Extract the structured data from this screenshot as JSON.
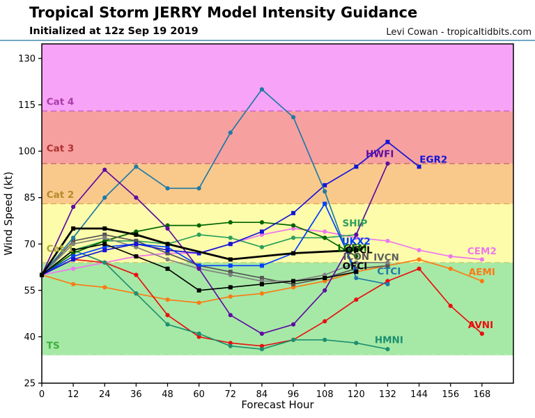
{
  "header": {
    "title": "Tropical Storm JERRY Model Intensity Guidance",
    "subtitle": "Initialized at 12z Sep 19 2019",
    "credit": "Levi Cowan - tropicaltidbits.com",
    "rule_color": "#4189ae"
  },
  "chart_data": {
    "type": "line",
    "title": "Tropical Storm JERRY Model Intensity Guidance",
    "xlabel": "Forecast Hour",
    "ylabel": "Wind Speed (kt)",
    "xlim": [
      0,
      180
    ],
    "ylim": [
      25,
      134.7
    ],
    "x_ticks": [
      0,
      12,
      24,
      36,
      48,
      60,
      72,
      84,
      96,
      108,
      120,
      132,
      144,
      156,
      168
    ],
    "y_ticks": [
      25,
      40,
      55,
      70,
      85,
      100,
      115,
      130
    ],
    "grid": false,
    "bands": [
      {
        "label": "below-TS",
        "from": 25,
        "to": 34,
        "color": "#ffffff"
      },
      {
        "label": "TS",
        "from": 34,
        "to": 64,
        "color": "#a6e9a6"
      },
      {
        "label": "Cat 1",
        "from": 64,
        "to": 83,
        "color": "#fcfcab"
      },
      {
        "label": "Cat 2",
        "from": 83,
        "to": 96,
        "color": "#f9c98c"
      },
      {
        "label": "Cat 3",
        "from": 96,
        "to": 113,
        "color": "#f6a0a0"
      },
      {
        "label": "Cat 4",
        "from": 113,
        "to": 134.7,
        "color": "#f7a3f7"
      }
    ],
    "boundaries": [
      {
        "value": 34,
        "color": "#e2efe2"
      },
      {
        "value": 64,
        "color": "#c6ca6a"
      },
      {
        "value": 83,
        "color": "#dca84e"
      },
      {
        "value": 96,
        "color": "#c96a6a"
      },
      {
        "value": 113,
        "color": "#c862c8"
      }
    ],
    "category_labels": [
      {
        "text": "TS",
        "x": 1.8,
        "y": 37.2,
        "color": "#3cae3c"
      },
      {
        "text": "Cat 1",
        "x": 1.8,
        "y": 68.5,
        "color": "#a8a832"
      },
      {
        "text": "Cat 2",
        "x": 1.8,
        "y": 86.0,
        "color": "#b5892b"
      },
      {
        "text": "Cat 3",
        "x": 1.8,
        "y": 101.0,
        "color": "#b03232"
      },
      {
        "text": "Cat 4",
        "x": 1.8,
        "y": 116.0,
        "color": "#a83ca8"
      }
    ],
    "series": [
      {
        "name": "CEM2",
        "color": "#ee77ee",
        "width": 1.7,
        "marker": "circle",
        "hours": [
          0,
          12,
          24,
          36,
          48,
          60,
          72,
          84,
          96,
          108,
          120,
          132,
          144,
          156,
          168
        ],
        "values": [
          60,
          62,
          64,
          66,
          67,
          67,
          70,
          73,
          75,
          74,
          72,
          71,
          68,
          66,
          65
        ]
      },
      {
        "name": "AEMI",
        "color": "#fb7a12",
        "width": 1.7,
        "marker": "circle",
        "hours": [
          0,
          12,
          24,
          36,
          48,
          60,
          72,
          84,
          96,
          108,
          120,
          132,
          144,
          156,
          168
        ],
        "values": [
          60,
          57,
          56,
          54,
          52,
          51,
          53,
          54,
          56,
          58,
          61,
          63,
          65,
          62,
          58
        ]
      },
      {
        "name": "AVNI",
        "color": "#e81010",
        "width": 1.7,
        "marker": "circle",
        "hours": [
          0,
          12,
          24,
          36,
          48,
          60,
          72,
          84,
          96,
          108,
          120,
          132,
          144,
          156,
          168
        ],
        "values": [
          60,
          65,
          64,
          60,
          47,
          40,
          38,
          37,
          39,
          45,
          52,
          58,
          62,
          50,
          41
        ]
      },
      {
        "name": "HMNI",
        "color": "#1d8f70",
        "width": 1.7,
        "marker": "circle",
        "hours": [
          0,
          12,
          24,
          36,
          48,
          60,
          72,
          84,
          96,
          108,
          120,
          132
        ],
        "values": [
          60,
          68,
          64,
          54,
          44,
          41,
          37,
          36,
          39,
          39,
          38,
          36
        ]
      },
      {
        "name": "SHIP",
        "color": "#2ca05a",
        "width": 1.7,
        "marker": "circle",
        "hours": [
          0,
          12,
          24,
          36,
          48,
          60,
          72,
          84,
          96,
          108,
          120
        ],
        "values": [
          60,
          68,
          71,
          71,
          70,
          73,
          72,
          69,
          72,
          72,
          73
        ]
      },
      {
        "name": "LGEM",
        "color": "#006400",
        "width": 1.7,
        "marker": "circle",
        "hours": [
          0,
          12,
          24,
          36,
          48,
          60,
          72,
          84,
          96,
          108,
          120
        ],
        "values": [
          60,
          67,
          71,
          74,
          76,
          76,
          77,
          77,
          76,
          72,
          66
        ]
      },
      {
        "name": "ICON",
        "color": "#555555",
        "width": 1.7,
        "marker": "square",
        "hours": [
          0,
          12,
          24,
          36,
          48,
          60,
          72,
          84,
          96,
          108,
          120,
          132
        ],
        "values": [
          60,
          71,
          73,
          71,
          67,
          63,
          61,
          59,
          57,
          59,
          62,
          63
        ]
      },
      {
        "name": "IVCN",
        "color": "#808080",
        "width": 1.7,
        "marker": "circle",
        "hours": [
          0,
          12,
          24,
          36,
          48,
          60,
          72,
          84,
          96,
          108,
          120,
          132
        ],
        "values": [
          60,
          70,
          72,
          69,
          65,
          62,
          60,
          58,
          58,
          60,
          64,
          64
        ]
      },
      {
        "name": "UKX2",
        "color": "#0040ff",
        "width": 1.7,
        "marker": "square",
        "hours": [
          0,
          12,
          24,
          36,
          48,
          60,
          72,
          84,
          96,
          108,
          120
        ],
        "values": [
          60,
          66,
          69,
          70,
          69,
          63,
          63,
          63,
          67,
          83,
          61
        ]
      },
      {
        "name": "EGR2",
        "color": "#1515d6",
        "width": 1.7,
        "marker": "square",
        "hours": [
          0,
          12,
          24,
          36,
          48,
          60,
          72,
          84,
          96,
          108,
          120,
          132,
          144
        ],
        "values": [
          60,
          65,
          68,
          70,
          68,
          67,
          70,
          74,
          80,
          89,
          95,
          103,
          95
        ]
      },
      {
        "name": "CTCI",
        "color": "#1f7aa6",
        "width": 1.7,
        "marker": "circle",
        "hours": [
          0,
          12,
          24,
          36,
          48,
          60,
          72,
          84,
          96,
          108,
          120,
          132
        ],
        "values": [
          60,
          72,
          85,
          95,
          88,
          88,
          106,
          120,
          111,
          87,
          59,
          57
        ]
      },
      {
        "name": "HWFI",
        "color": "#5e0da0",
        "width": 1.7,
        "marker": "circle",
        "hours": [
          0,
          12,
          24,
          36,
          48,
          60,
          72,
          84,
          96,
          108,
          120,
          132
        ],
        "values": [
          60,
          82,
          94,
          85,
          75,
          62,
          47,
          41,
          44,
          55,
          73,
          96
        ]
      },
      {
        "name": "OFCI",
        "color": "#000000",
        "width": 1.6,
        "marker": "square",
        "hours": [
          0,
          12,
          24,
          36,
          48,
          60,
          72,
          84,
          96,
          108,
          120
        ],
        "values": [
          60,
          68,
          70,
          66,
          62,
          55,
          56,
          57,
          58,
          59,
          61
        ]
      },
      {
        "name": "OFCL",
        "color": "#000000",
        "width": 2.8,
        "marker": "square",
        "hours": [
          0,
          12,
          24,
          36,
          48,
          72,
          96,
          120
        ],
        "values": [
          60,
          75,
          75,
          73,
          70,
          65,
          67,
          68
        ]
      }
    ],
    "series_labels": [
      {
        "text": "HWFI",
        "x": 129,
        "y": 99.2,
        "color": "#5e0da0"
      },
      {
        "text": "EGR2",
        "x": 149.5,
        "y": 97.4,
        "color": "#1515d6"
      },
      {
        "text": "SHIP",
        "x": 119.5,
        "y": 76.8,
        "color": "#2ca05a"
      },
      {
        "text": "UKX2",
        "x": 120,
        "y": 70.9,
        "color": "#0040ff"
      },
      {
        "text": "LGEM",
        "x": 118.5,
        "y": 68.7,
        "color": "#006400"
      },
      {
        "text": "OFCL",
        "x": 121,
        "y": 68.1,
        "color": "#000000"
      },
      {
        "text": "ICON",
        "x": 120,
        "y": 65.9,
        "color": "#555555"
      },
      {
        "text": "OFCI",
        "x": 119.5,
        "y": 62.9,
        "color": "#000000"
      },
      {
        "text": "IVCN",
        "x": 131.5,
        "y": 65.7,
        "color": "#606060"
      },
      {
        "text": "CTCI",
        "x": 132.5,
        "y": 61.2,
        "color": "#1f7aa6"
      },
      {
        "text": "CEM2",
        "x": 168,
        "y": 67.7,
        "color": "#ee77ee"
      },
      {
        "text": "AEMI",
        "x": 168,
        "y": 61.0,
        "color": "#fb7a12"
      },
      {
        "text": "AVNI",
        "x": 167.5,
        "y": 43.9,
        "color": "#e81010"
      },
      {
        "text": "HMNI",
        "x": 132.5,
        "y": 39.0,
        "color": "#1d8f70"
      }
    ],
    "legend_position": "inline-labels"
  }
}
